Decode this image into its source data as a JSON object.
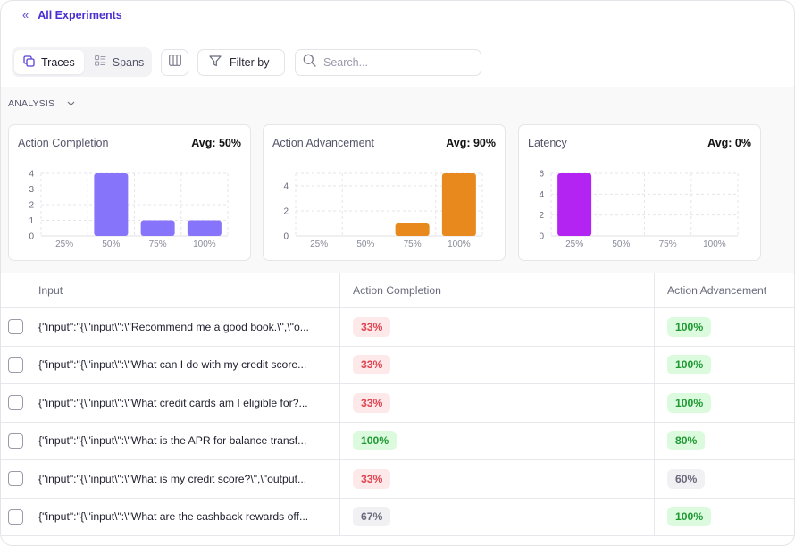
{
  "nav": {
    "back_label": "All Experiments",
    "back_icon": "double-chevron-left-icon"
  },
  "toolbar": {
    "view_tabs": [
      {
        "label": "Traces",
        "icon": "traces-icon",
        "active": true
      },
      {
        "label": "Spans",
        "icon": "spans-icon",
        "active": false
      }
    ],
    "columns_icon": "columns-icon",
    "filter_label": "Filter by",
    "search_placeholder": "Search...",
    "search_value": ""
  },
  "analysis": {
    "label": "ANALYSIS",
    "cards": [
      {
        "title": "Action Completion",
        "avg": "Avg: 50%"
      },
      {
        "title": "Action Advancement",
        "avg": "Avg: 90%"
      },
      {
        "title": "Latency",
        "avg": "Avg: 0%"
      }
    ]
  },
  "chart_data": [
    {
      "type": "bar",
      "title": "Action Completion",
      "categories": [
        "25%",
        "50%",
        "75%",
        "100%"
      ],
      "values": [
        0,
        4,
        1,
        1
      ],
      "yticks": [
        0,
        1,
        2,
        3,
        4
      ],
      "ylim": [
        0,
        4
      ],
      "color": "#8675fb",
      "grid": true
    },
    {
      "type": "bar",
      "title": "Action Advancement",
      "categories": [
        "25%",
        "50%",
        "75%",
        "100%"
      ],
      "values": [
        0,
        0,
        1,
        5
      ],
      "yticks": [
        0,
        2,
        4
      ],
      "ylim": [
        0,
        5
      ],
      "color": "#e8891d",
      "grid": true
    },
    {
      "type": "bar",
      "title": "Latency",
      "categories": [
        "25%",
        "50%",
        "75%",
        "100%"
      ],
      "values": [
        6,
        0,
        0,
        0
      ],
      "yticks": [
        0,
        2,
        4,
        6
      ],
      "ylim": [
        0,
        6
      ],
      "color": "#b323f2",
      "grid": true
    }
  ],
  "table": {
    "columns": [
      "Input",
      "Action Completion",
      "Action Advancement"
    ],
    "rows": [
      {
        "input": "{\"input\":\"{\\\"input\\\":\\\"Recommend me a good book.\\\",\\\"o...",
        "action_completion": "33%",
        "ac_status": "red",
        "action_advancement": "100%",
        "aa_status": "green"
      },
      {
        "input": "{\"input\":\"{\\\"input\\\":\\\"What can I do with my credit score...",
        "action_completion": "33%",
        "ac_status": "red",
        "action_advancement": "100%",
        "aa_status": "green"
      },
      {
        "input": "{\"input\":\"{\\\"input\\\":\\\"What credit cards am I eligible for?...",
        "action_completion": "33%",
        "ac_status": "red",
        "action_advancement": "100%",
        "aa_status": "green"
      },
      {
        "input": "{\"input\":\"{\\\"input\\\":\\\"What is the APR for balance transf...",
        "action_completion": "100%",
        "ac_status": "green",
        "action_advancement": "80%",
        "aa_status": "green"
      },
      {
        "input": "{\"input\":\"{\\\"input\\\":\\\"What is my credit score?\\\",\\\"output...",
        "action_completion": "33%",
        "ac_status": "red",
        "action_advancement": "60%",
        "aa_status": "gray"
      },
      {
        "input": "{\"input\":\"{\\\"input\\\":\\\"What are the cashback rewards off...",
        "action_completion": "67%",
        "ac_status": "gray",
        "action_advancement": "100%",
        "aa_status": "green"
      }
    ]
  }
}
